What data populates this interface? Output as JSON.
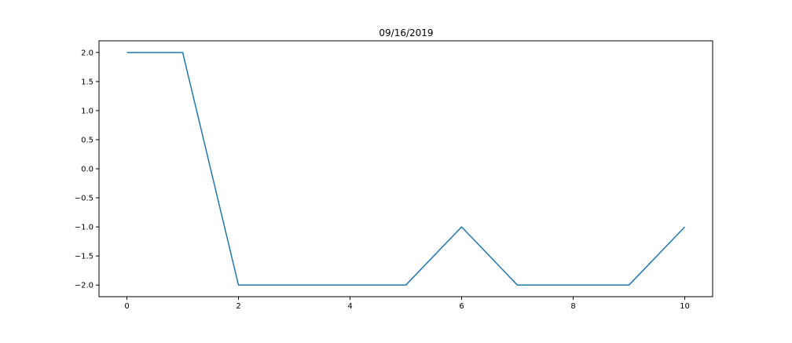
{
  "chart_data": {
    "type": "line",
    "title": "09/16/2019",
    "xlabel": "",
    "ylabel": "",
    "xlim": [
      -0.5,
      10.5
    ],
    "ylim": [
      -2.2,
      2.2
    ],
    "xticks": [
      0,
      2,
      4,
      6,
      8,
      10
    ],
    "xtick_labels": [
      "0",
      "2",
      "4",
      "6",
      "8",
      "10"
    ],
    "yticks": [
      2.0,
      1.5,
      1.0,
      0.5,
      0.0,
      -0.5,
      -1.0,
      -1.5,
      -2.0
    ],
    "ytick_labels": [
      "2.0",
      "1.5",
      "1.0",
      "0.5",
      "0.0",
      "−0.5",
      "−1.0",
      "−1.5",
      "−2.0"
    ],
    "grid": false,
    "series": [
      {
        "color": "#1f77b4",
        "x": [
          0,
          1,
          2,
          3,
          4,
          5,
          6,
          7,
          8,
          9,
          10
        ],
        "y": [
          2,
          2,
          -2,
          -2,
          -2,
          -2,
          -1,
          -2,
          -2,
          -2,
          -1
        ]
      }
    ]
  }
}
